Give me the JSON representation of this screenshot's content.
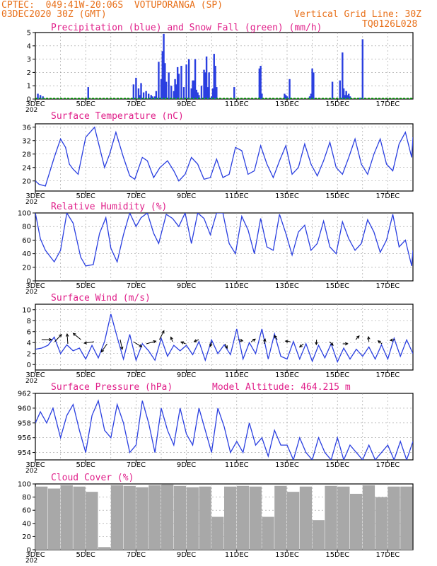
{
  "header": {
    "line1": "CPTEC:  049:41W-20:06S  VOTUPORANGA (SP)",
    "line2": "03DEC2020 30Z (GMT)",
    "right1": "Vertical Grid Line: 30Z",
    "right2": "TQ0126L028"
  },
  "colors": {
    "header": "#e8701a",
    "title": "#e0208a",
    "line": "#2a3fe0",
    "bar": "#2a3fe0",
    "snow": "#00aa00",
    "cloud": "#a8a8a8",
    "grid": "#999999"
  },
  "chart_data": [
    {
      "type": "bar",
      "title": "Precipitation (blue) and Snow Fall (green) (mm/h)",
      "xlim": [
        "03DEC",
        "18DEC"
      ],
      "x_tick_labels": [
        "3DEC",
        "5DEC",
        "7DEC",
        "9DEC",
        "11DEC",
        "13DEC",
        "15DEC",
        "17DEC"
      ],
      "ylim": [
        0,
        5
      ],
      "y_ticks": [
        0,
        1,
        2,
        3,
        4,
        5
      ],
      "series": [
        {
          "name": "Precipitation",
          "color": "#2a3fe0",
          "x": [
            0.1,
            0.2,
            0.3,
            2.1,
            3.9,
            4.0,
            4.1,
            4.15,
            4.2,
            4.3,
            4.4,
            4.5,
            4.6,
            4.65,
            4.7,
            4.75,
            4.8,
            4.9,
            5.0,
            5.05,
            5.1,
            5.15,
            5.2,
            5.3,
            5.4,
            5.5,
            5.55,
            5.6,
            5.65,
            5.7,
            5.8,
            5.9,
            6.0,
            6.1,
            6.2,
            6.25,
            6.3,
            6.35,
            6.4,
            6.45,
            6.5,
            6.6,
            6.7,
            6.75,
            6.8,
            6.85,
            6.9,
            7.0,
            7.05,
            7.1,
            7.15,
            7.2,
            7.9,
            8.9,
            8.95,
            9.0,
            9.9,
            9.95,
            10.0,
            10.1,
            10.9,
            10.95,
            11.0,
            11.05,
            11.8,
            12.3,
            12.35,
            12.4,
            12.45,
            12.5,
            12.9,
            13.0,
            12.1,
            12.2,
            12.25
          ],
          "y": [
            0.4,
            0.3,
            0.2,
            0.9,
            1.1,
            1.6,
            0.8,
            0.3,
            1.2,
            0.5,
            0.6,
            0.4,
            0.3,
            0.2,
            0.1,
            0.2,
            0.6,
            2.8,
            1.5,
            3.6,
            4.9,
            2.7,
            1.3,
            2.0,
            1.0,
            0.6,
            1.5,
            1.1,
            2.4,
            1.9,
            2.5,
            0.9,
            2.6,
            3.0,
            0.8,
            1.4,
            1.4,
            3.0,
            0.7,
            0.5,
            0.3,
            1.0,
            2.2,
            2.0,
            3.2,
            0.9,
            2.0,
            0.2,
            0.8,
            3.4,
            2.5,
            0.9,
            0.9,
            2.3,
            2.5,
            0.4,
            0.4,
            0.3,
            0.2,
            1.5,
            0.2,
            0.4,
            2.3,
            2.0,
            1.3,
            0.3,
            0.6,
            0.3,
            0.4,
            0.2,
            0.1,
            4.5,
            1.4,
            3.5,
            0.8
          ]
        }
      ]
    },
    {
      "type": "line",
      "title": "Surface Temperature (nC)",
      "xlim": [
        "03DEC",
        "18DEC"
      ],
      "x_tick_labels": [
        "3DEC",
        "5DEC",
        "7DEC",
        "9DEC",
        "11DEC",
        "13DEC",
        "15DEC",
        "17DEC"
      ],
      "ylim": [
        17,
        37
      ],
      "y_ticks": [
        20,
        24,
        28,
        32,
        36
      ],
      "series": [
        {
          "name": "Temperature",
          "color": "#2a3fe0",
          "x": [
            0,
            0.15,
            0.4,
            0.75,
            1.0,
            1.2,
            1.35,
            1.5,
            1.7,
            2.0,
            2.35,
            2.55,
            2.75,
            2.95,
            3.2,
            3.5,
            3.75,
            3.95,
            4.25,
            4.45,
            4.7,
            4.95,
            5.25,
            5.5,
            5.7,
            5.95,
            6.2,
            6.45,
            6.7,
            6.95,
            7.2,
            7.45,
            7.7,
            7.95,
            8.2,
            8.45,
            8.7,
            8.95,
            9.2,
            9.45,
            9.7,
            9.95,
            10.2,
            10.45,
            10.7,
            10.95,
            11.2,
            11.45,
            11.7,
            11.95,
            12.2,
            12.45,
            12.7,
            12.95,
            13.2,
            13.45,
            13.7,
            13.95,
            14.2,
            14.45,
            14.7,
            14.95,
            15
          ],
          "y": [
            20,
            19,
            18.5,
            27,
            32.5,
            30,
            25,
            23.5,
            22,
            33,
            36,
            30,
            24,
            28,
            34.5,
            27,
            21.5,
            20.5,
            27,
            26,
            21,
            24,
            26,
            23,
            20,
            22,
            27,
            25,
            20.5,
            21,
            26.5,
            21,
            22,
            30,
            29,
            22,
            23,
            30.5,
            25,
            21,
            26,
            30.5,
            22,
            24,
            31,
            25,
            21.5,
            26,
            31.5,
            24,
            22,
            27,
            32.5,
            25,
            22,
            28,
            32.5,
            25,
            23,
            31,
            34.5,
            27,
            33
          ]
        }
      ]
    },
    {
      "type": "line",
      "title": "Relative Humidity (%)",
      "xlim": [
        "03DEC",
        "18DEC"
      ],
      "x_tick_labels": [
        "3DEC",
        "5DEC",
        "7DEC",
        "9DEC",
        "11DEC",
        "13DEC",
        "15DEC",
        "17DEC"
      ],
      "ylim": [
        0,
        100
      ],
      "y_ticks": [
        0,
        20,
        40,
        60,
        80,
        100
      ],
      "series": [
        {
          "name": "Humidity",
          "color": "#2a3fe0",
          "x": [
            0,
            0.2,
            0.4,
            0.75,
            1.0,
            1.25,
            1.5,
            1.8,
            2.0,
            2.3,
            2.55,
            2.8,
            3.0,
            3.25,
            3.5,
            3.75,
            4.0,
            4.2,
            4.45,
            4.7,
            4.9,
            5.2,
            5.45,
            5.7,
            5.95,
            6.2,
            6.45,
            6.7,
            6.95,
            7.2,
            7.45,
            7.7,
            7.95,
            8.2,
            8.45,
            8.7,
            8.95,
            9.2,
            9.45,
            9.7,
            9.95,
            10.2,
            10.45,
            10.7,
            10.95,
            11.2,
            11.45,
            11.7,
            11.95,
            12.2,
            12.45,
            12.7,
            12.95,
            13.2,
            13.45,
            13.7,
            13.95,
            14.2,
            14.45,
            14.7,
            14.95,
            15
          ],
          "y": [
            100,
            62,
            45,
            28,
            45,
            100,
            85,
            35,
            22,
            24,
            70,
            93,
            48,
            28,
            68,
            100,
            80,
            93,
            100,
            70,
            55,
            98,
            92,
            80,
            100,
            55,
            100,
            92,
            68,
            100,
            100,
            55,
            40,
            95,
            75,
            40,
            92,
            50,
            45,
            98,
            70,
            38,
            72,
            82,
            45,
            55,
            88,
            50,
            40,
            87,
            62,
            45,
            55,
            90,
            72,
            42,
            60,
            98,
            50,
            60,
            22,
            45
          ]
        }
      ]
    },
    {
      "type": "line",
      "title": "Surface Wind (m/s)",
      "xlim": [
        "03DEC",
        "18DEC"
      ],
      "x_tick_labels": [
        "3DEC",
        "5DEC",
        "7DEC",
        "9DEC",
        "11DEC",
        "13DEC",
        "15DEC",
        "17DEC"
      ],
      "ylim": [
        -1,
        11
      ],
      "y_ticks": [
        0,
        2,
        4,
        6,
        8,
        10
      ],
      "series": [
        {
          "name": "Wind speed",
          "color": "#2a3fe0",
          "x": [
            0,
            0.25,
            0.5,
            0.75,
            1.0,
            1.25,
            1.5,
            1.75,
            2.0,
            2.25,
            2.5,
            2.75,
            3.0,
            3.25,
            3.5,
            3.75,
            4.0,
            4.25,
            4.5,
            4.75,
            5.0,
            5.25,
            5.5,
            5.75,
            6.0,
            6.25,
            6.5,
            6.75,
            7.0,
            7.25,
            7.5,
            7.75,
            8.0,
            8.25,
            8.5,
            8.75,
            9.0,
            9.25,
            9.5,
            9.75,
            10.0,
            10.25,
            10.5,
            10.75,
            11.0,
            11.25,
            11.5,
            11.75,
            12.0,
            12.25,
            12.5,
            12.75,
            13.0,
            13.25,
            13.5,
            13.75,
            14.0,
            14.25,
            14.5,
            14.75,
            15
          ],
          "y": [
            2.8,
            3.0,
            3.5,
            5.0,
            2.0,
            3.6,
            2.5,
            3.0,
            1.0,
            3.5,
            1.2,
            4.2,
            9.2,
            5.0,
            1.0,
            5.5,
            0.8,
            3.8,
            2.5,
            0.8,
            4.8,
            1.5,
            3.5,
            2.5,
            3.5,
            1.8,
            4.2,
            0.8,
            4.5,
            2.0,
            3.6,
            1.8,
            6.5,
            1.0,
            4.0,
            2.0,
            6.5,
            1.0,
            5.6,
            1.5,
            1.0,
            4.2,
            1.0,
            3.8,
            0.6,
            3.5,
            1.2,
            3.8,
            0.5,
            3.0,
            1.0,
            2.8,
            1.5,
            3.2,
            1.0,
            3.6,
            1.0,
            4.8,
            1.5,
            4.5,
            2.0
          ]
        }
      ],
      "wind_arrows": {
        "count": 28
      }
    },
    {
      "type": "line",
      "title": "Surface Pressure (hPa)",
      "annotation": "Model Altitude: 464.215 m",
      "xlim": [
        "03DEC",
        "18DEC"
      ],
      "x_tick_labels": [
        "3DEC",
        "5DEC",
        "7DEC",
        "9DEC",
        "11DEC",
        "13DEC",
        "15DEC",
        "17DEC"
      ],
      "ylim": [
        953,
        962
      ],
      "y_ticks": [
        954,
        956,
        958,
        960,
        962
      ],
      "series": [
        {
          "name": "Pressure",
          "color": "#2a3fe0",
          "x": [
            0,
            0.2,
            0.45,
            0.7,
            1.0,
            1.25,
            1.5,
            1.75,
            2.0,
            2.25,
            2.5,
            2.75,
            3.0,
            3.25,
            3.5,
            3.75,
            4.0,
            4.25,
            4.5,
            4.75,
            5.0,
            5.25,
            5.5,
            5.75,
            6.0,
            6.25,
            6.5,
            6.75,
            7.0,
            7.25,
            7.5,
            7.75,
            8.0,
            8.25,
            8.5,
            8.75,
            9.0,
            9.25,
            9.5,
            9.75,
            10.0,
            10.25,
            10.5,
            10.75,
            11.0,
            11.25,
            11.5,
            11.75,
            12.0,
            12.25,
            12.5,
            12.75,
            13.0,
            13.25,
            13.5,
            13.75,
            14.0,
            14.25,
            14.5,
            14.75,
            15
          ],
          "y": [
            958,
            959.5,
            958,
            960,
            956,
            959,
            960.5,
            957,
            954,
            959,
            961,
            957,
            956,
            960.5,
            958,
            954,
            955,
            961,
            958,
            954,
            960,
            957,
            955,
            960,
            956.5,
            955,
            960,
            957,
            954,
            960,
            957.5,
            954,
            955.5,
            954,
            958,
            955,
            956,
            953.5,
            957,
            955,
            955,
            953,
            956,
            954,
            953,
            956,
            954,
            953,
            956,
            953,
            955,
            954,
            953,
            955,
            953,
            954,
            955,
            953,
            955.5,
            953,
            955.5
          ]
        }
      ]
    },
    {
      "type": "bar",
      "title": "Cloud Cover (%)",
      "xlim": [
        "03DEC",
        "18DEC"
      ],
      "x_tick_labels": [
        "3DEC",
        "5DEC",
        "7DEC",
        "9DEC",
        "11DEC",
        "13DEC",
        "15DEC",
        "17DEC"
      ],
      "ylim": [
        0,
        100
      ],
      "y_ticks": [
        0,
        20,
        40,
        60,
        80,
        100
      ],
      "series": [
        {
          "name": "Cloud cover",
          "color": "#a8a8a8",
          "x": [
            0,
            0.5,
            1.0,
            1.5,
            2.0,
            2.5,
            3.0,
            3.5,
            4.0,
            4.5,
            5.0,
            5.5,
            6.0,
            6.5,
            7.0,
            7.5,
            8.0,
            8.5,
            9.0,
            9.5,
            10.0,
            10.5,
            11.0,
            11.5,
            12.0,
            12.5,
            13.0,
            13.5,
            14.0,
            14.5
          ],
          "y": [
            96,
            93,
            98,
            96,
            88,
            4,
            98,
            97,
            95,
            98,
            99,
            97,
            95,
            96,
            50,
            96,
            97,
            96,
            50,
            97,
            88,
            96,
            45,
            97,
            96,
            85,
            98,
            80,
            96,
            96
          ]
        }
      ]
    }
  ]
}
